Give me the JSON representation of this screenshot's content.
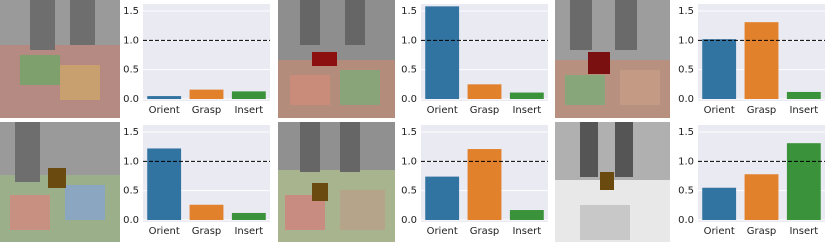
{
  "chart_data": [
    {
      "type": "bar",
      "categories": [
        "Orient",
        "Grasp",
        "Insert"
      ],
      "values": [
        0.05,
        0.16,
        0.13
      ],
      "colors": [
        "#3274a1",
        "#e1812c",
        "#3a923a"
      ],
      "ylim": [
        0,
        1.62
      ],
      "yticks": [
        {
          "value": 0,
          "label": "0.0"
        },
        0.5,
        {
          "value": 1,
          "label": "1.0"
        },
        1.5
      ],
      "reference_line": 1,
      "grid": true
    },
    {
      "type": "bar",
      "categories": [
        "Orient",
        "Grasp",
        "Insert"
      ],
      "values": [
        1.58,
        0.25,
        0.11
      ],
      "colors": [
        "#3274a1",
        "#e1812c",
        "#3a923a"
      ],
      "ylim": [
        0,
        1.62
      ],
      "yticks": [
        {
          "value": 0,
          "label": "0.0"
        },
        0.5,
        {
          "value": 1,
          "label": "1.0"
        },
        1.5
      ],
      "reference_line": 1,
      "grid": true
    },
    {
      "type": "bar",
      "categories": [
        "Orient",
        "Grasp",
        "Insert"
      ],
      "values": [
        1.02,
        1.31,
        0.12
      ],
      "colors": [
        "#3274a1",
        "#e1812c",
        "#3a923a"
      ],
      "ylim": [
        0,
        1.62
      ],
      "yticks": [
        {
          "value": 0,
          "label": "0.0"
        },
        0.5,
        {
          "value": 1,
          "label": "1.0"
        },
        1.5
      ],
      "reference_line": 1,
      "grid": true
    },
    {
      "type": "bar",
      "categories": [
        "Orient",
        "Grasp",
        "Insert"
      ],
      "values": [
        1.22,
        0.26,
        0.12
      ],
      "colors": [
        "#3274a1",
        "#e1812c",
        "#3a923a"
      ],
      "ylim": [
        0,
        1.62
      ],
      "yticks": [
        {
          "value": 0,
          "label": "0.0"
        },
        0.5,
        {
          "value": 1,
          "label": "1.0"
        },
        1.5
      ],
      "reference_line": 1,
      "grid": true
    },
    {
      "type": "bar",
      "categories": [
        "Orient",
        "Grasp",
        "Insert"
      ],
      "values": [
        0.74,
        1.21,
        0.17
      ],
      "colors": [
        "#3274a1",
        "#e1812c",
        "#3a923a"
      ],
      "ylim": [
        0,
        1.62
      ],
      "yticks": [
        {
          "value": 0,
          "label": "0.0"
        },
        0.5,
        {
          "value": 1,
          "label": "1.0"
        },
        1.5
      ],
      "reference_line": 1,
      "grid": true
    },
    {
      "type": "bar",
      "categories": [
        "Orient",
        "Grasp",
        "Insert"
      ],
      "values": [
        0.55,
        0.78,
        1.31
      ],
      "colors": [
        "#3274a1",
        "#e1812c",
        "#3a923a"
      ],
      "ylim": [
        0,
        1.62
      ],
      "yticks": [
        {
          "value": 0,
          "label": "0.0"
        },
        0.5,
        {
          "value": 1,
          "label": "1.0"
        },
        1.5
      ],
      "reference_line": 1,
      "grid": true
    }
  ]
}
